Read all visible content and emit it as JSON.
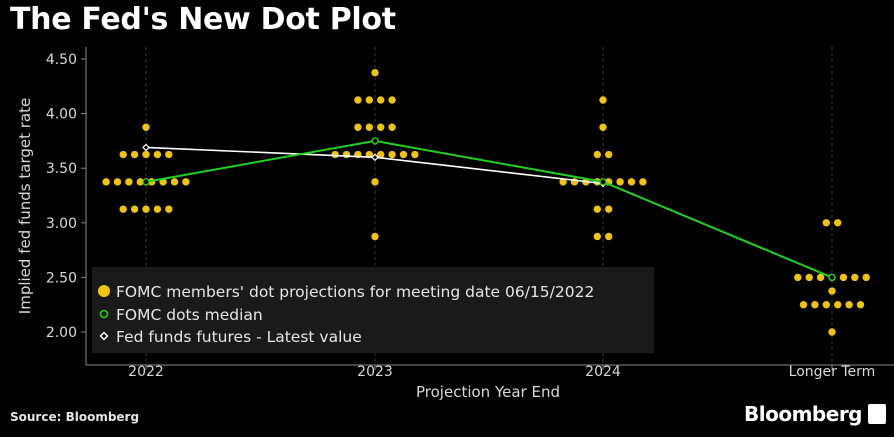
{
  "title": "The Fed's New Dot Plot",
  "source": "Source: Bloomberg",
  "brand": "Bloomberg",
  "brand_icon": "bloomberg-terminal-icon",
  "colors": {
    "background": "#000000",
    "dots": "#f0c30f",
    "median": "#1ed31e",
    "futures": "#ffffff",
    "grid": "#3a3a3a",
    "legend_bg": "#1a1a1a"
  },
  "chart_data": {
    "type": "scatter",
    "title": "The Fed's New Dot Plot",
    "xlabel": "Projection Year End",
    "ylabel": "Implied fed funds target rate",
    "categories": [
      "2022",
      "2023",
      "2024",
      "Longer Term"
    ],
    "ylim": [
      1.875,
      4.5
    ],
    "yticks": [
      "4.50",
      "4.00",
      "3.50",
      "3.00",
      "2.50",
      "2.00"
    ],
    "grid": "vertical dashed",
    "legend_position": "bottom-left",
    "series": [
      {
        "name": "FOMC members' dot projections for meeting date 06/15/2022",
        "kind": "dots",
        "points": [
          {
            "x": "2022",
            "y": 3.875,
            "count": 1
          },
          {
            "x": "2022",
            "y": 3.625,
            "count": 5
          },
          {
            "x": "2022",
            "y": 3.375,
            "count": 8
          },
          {
            "x": "2022",
            "y": 3.125,
            "count": 5
          },
          {
            "x": "2023",
            "y": 4.375,
            "count": 1
          },
          {
            "x": "2023",
            "y": 4.125,
            "count": 4
          },
          {
            "x": "2023",
            "y": 3.875,
            "count": 4
          },
          {
            "x": "2023",
            "y": 3.625,
            "count": 8
          },
          {
            "x": "2023",
            "y": 3.375,
            "count": 1
          },
          {
            "x": "2023",
            "y": 2.875,
            "count": 1
          },
          {
            "x": "2024",
            "y": 4.125,
            "count": 1
          },
          {
            "x": "2024",
            "y": 3.875,
            "count": 1
          },
          {
            "x": "2024",
            "y": 3.625,
            "count": 2
          },
          {
            "x": "2024",
            "y": 3.375,
            "count": 8
          },
          {
            "x": "2024",
            "y": 3.125,
            "count": 2
          },
          {
            "x": "2024",
            "y": 2.875,
            "count": 2
          },
          {
            "x": "2024",
            "y": 2.375,
            "count": 1
          },
          {
            "x": "2024",
            "y": 2.25,
            "count": 1
          },
          {
            "x": "2024",
            "y": 2.125,
            "count": 1
          },
          {
            "x": "Longer Term",
            "y": 3.0,
            "count": 2
          },
          {
            "x": "Longer Term",
            "y": 2.5,
            "count": 7
          },
          {
            "x": "Longer Term",
            "y": 2.375,
            "count": 1
          },
          {
            "x": "Longer Term",
            "y": 2.25,
            "count": 6
          },
          {
            "x": "Longer Term",
            "y": 2.0,
            "count": 1
          }
        ]
      },
      {
        "name": "FOMC dots median",
        "kind": "line-hollow-marker",
        "values": [
          3.375,
          3.75,
          3.375,
          2.5
        ]
      },
      {
        "name": "Fed funds futures - Latest value",
        "kind": "line-diamond-marker",
        "x": [
          "2022",
          "2023",
          "2024"
        ],
        "values": [
          3.69,
          3.6,
          3.36
        ]
      }
    ]
  }
}
